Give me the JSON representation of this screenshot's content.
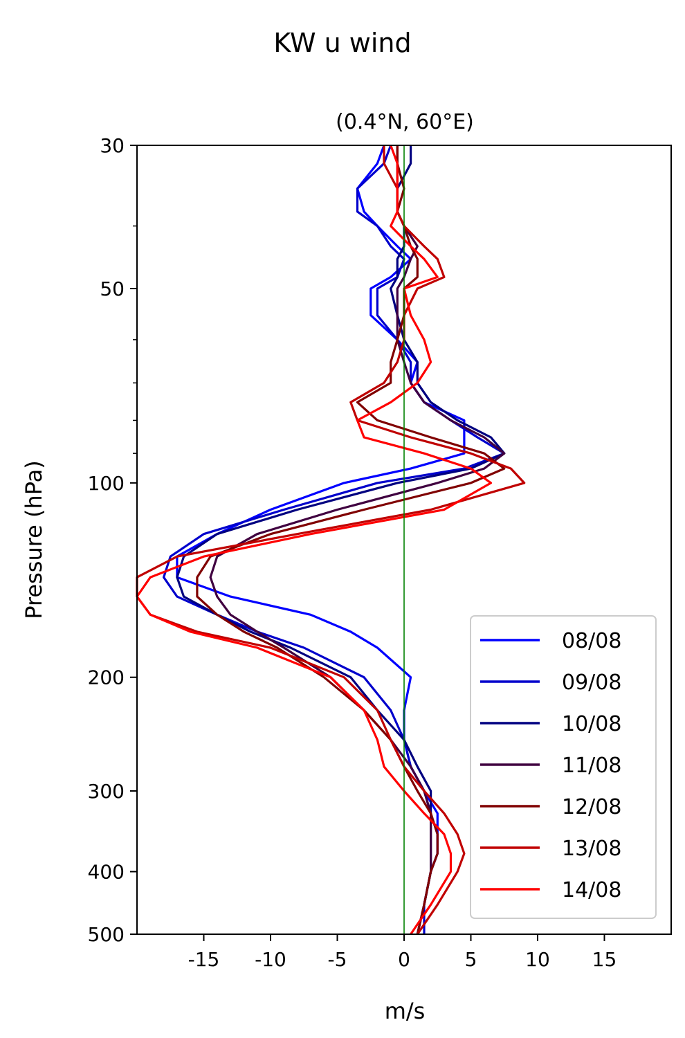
{
  "chart_data": {
    "type": "line",
    "suptitle": "KW u wind",
    "title": "(0.4°N, 60°E)",
    "xlabel": "m/s",
    "ylabel": "Pressure (hPa)",
    "xlim": [
      -20,
      20
    ],
    "ylim": [
      500,
      30
    ],
    "yscale": "log",
    "xticks": [
      -15,
      -10,
      -5,
      0,
      5,
      10,
      15
    ],
    "xtick_labels": [
      "-15",
      "-10",
      "-5",
      "0",
      "5",
      "10",
      "15"
    ],
    "yticks": [
      30,
      50,
      100,
      200,
      300,
      400,
      500
    ],
    "ytick_labels": [
      "30",
      "50",
      "100",
      "200",
      "300",
      "400",
      "500"
    ],
    "yminor_ticks": [
      40,
      60,
      70,
      80,
      90
    ],
    "reference_line": {
      "x": 0,
      "color": "#008000"
    },
    "legend_position": "lower right",
    "pressure_levels": [
      30,
      32,
      35,
      38,
      40,
      43,
      45,
      48,
      50,
      55,
      60,
      65,
      70,
      75,
      80,
      85,
      90,
      95,
      100,
      110,
      120,
      130,
      140,
      150,
      160,
      170,
      180,
      200,
      225,
      250,
      275,
      300,
      325,
      350,
      375,
      400,
      450,
      500
    ],
    "series": [
      {
        "name": "08/08",
        "color": "#0000ff",
        "values": [
          -1.5,
          -2,
          -3.5,
          -3,
          -2,
          -0.5,
          0.5,
          -1,
          -2.5,
          -2.5,
          -0.5,
          1,
          0.5,
          1.5,
          4.5,
          4.5,
          4.5,
          0.5,
          -4.5,
          -10,
          -14,
          -17,
          -17,
          -13,
          -7,
          -4,
          -2,
          0.5,
          0,
          0,
          0.5,
          1.5,
          2.5,
          2.5,
          2.5,
          2,
          1.5,
          1
        ]
      },
      {
        "name": "09/08",
        "color": "#0000cc",
        "values": [
          -1,
          -1.5,
          -3.5,
          -3.5,
          -2,
          -1,
          0,
          -0.5,
          -2,
          -2,
          -0.5,
          0.5,
          0.5,
          1.5,
          3.5,
          5.5,
          7.5,
          4.5,
          -2,
          -9,
          -15,
          -17.5,
          -18,
          -17,
          -14,
          -11,
          -7.5,
          -3,
          -1,
          0,
          0.5,
          1.5,
          2,
          2.5,
          2.5,
          2,
          1.5,
          1.5
        ]
      },
      {
        "name": "10/08",
        "color": "#000080",
        "values": [
          0.5,
          0.5,
          -0.5,
          -0.5,
          0,
          0,
          -0.5,
          -0.5,
          -1,
          -0.5,
          0,
          1,
          1,
          2,
          4,
          6.5,
          7.5,
          5,
          -0.5,
          -8,
          -14,
          -16.5,
          -17,
          -16.5,
          -14,
          -11.5,
          -8.5,
          -4,
          -2,
          0,
          1,
          2,
          2,
          2,
          2,
          2,
          1.5,
          1
        ]
      },
      {
        "name": "11/08",
        "color": "#400040",
        "values": [
          -0.5,
          -0.5,
          -0.5,
          -0.5,
          0,
          1,
          0.5,
          0,
          -0.5,
          -0.5,
          -0.5,
          0,
          0.5,
          1.5,
          3.5,
          6,
          7.5,
          6,
          2.5,
          -5,
          -11,
          -14,
          -14.5,
          -14,
          -13,
          -11,
          -9,
          -5.5,
          -3,
          -1,
          0.5,
          1.5,
          2,
          2,
          2,
          2,
          1.5,
          1
        ]
      },
      {
        "name": "12/08",
        "color": "#800000",
        "values": [
          -0.5,
          -0.5,
          0,
          -0.5,
          0,
          0.5,
          1,
          1,
          0,
          0,
          -0.5,
          -1,
          -1,
          -3.5,
          -2,
          2,
          6,
          7.5,
          5,
          -3,
          -10,
          -14.5,
          -15.5,
          -15.5,
          -14,
          -12,
          -9.5,
          -6,
          -3,
          -1,
          0,
          1,
          2,
          2.5,
          2.5,
          2,
          1.5,
          1
        ]
      },
      {
        "name": "13/08",
        "color": "#c00000",
        "values": [
          -1.5,
          -1.5,
          -0.5,
          -0.5,
          0,
          1.5,
          2.5,
          3,
          1,
          0,
          0,
          -0.5,
          -1.5,
          -4,
          -3.5,
          0.5,
          5,
          8,
          9,
          2,
          -8,
          -17,
          -20,
          -20,
          -19,
          -15.5,
          -10,
          -4.5,
          -2,
          -1,
          0,
          1.5,
          3,
          4,
          4.5,
          4,
          2.5,
          1
        ]
      },
      {
        "name": "14/08",
        "color": "#ff0000",
        "values": [
          -1,
          -0.5,
          -0.5,
          -0.5,
          -1,
          0.5,
          1.5,
          2.5,
          0,
          0.5,
          1.5,
          2,
          1,
          -1,
          -3.5,
          -3,
          1.5,
          5,
          6.5,
          3,
          -7,
          -15,
          -19,
          -20,
          -19,
          -16,
          -11,
          -5.5,
          -3,
          -2,
          -1.5,
          0,
          1.5,
          3,
          3.5,
          3.5,
          2,
          0.5
        ]
      }
    ]
  }
}
